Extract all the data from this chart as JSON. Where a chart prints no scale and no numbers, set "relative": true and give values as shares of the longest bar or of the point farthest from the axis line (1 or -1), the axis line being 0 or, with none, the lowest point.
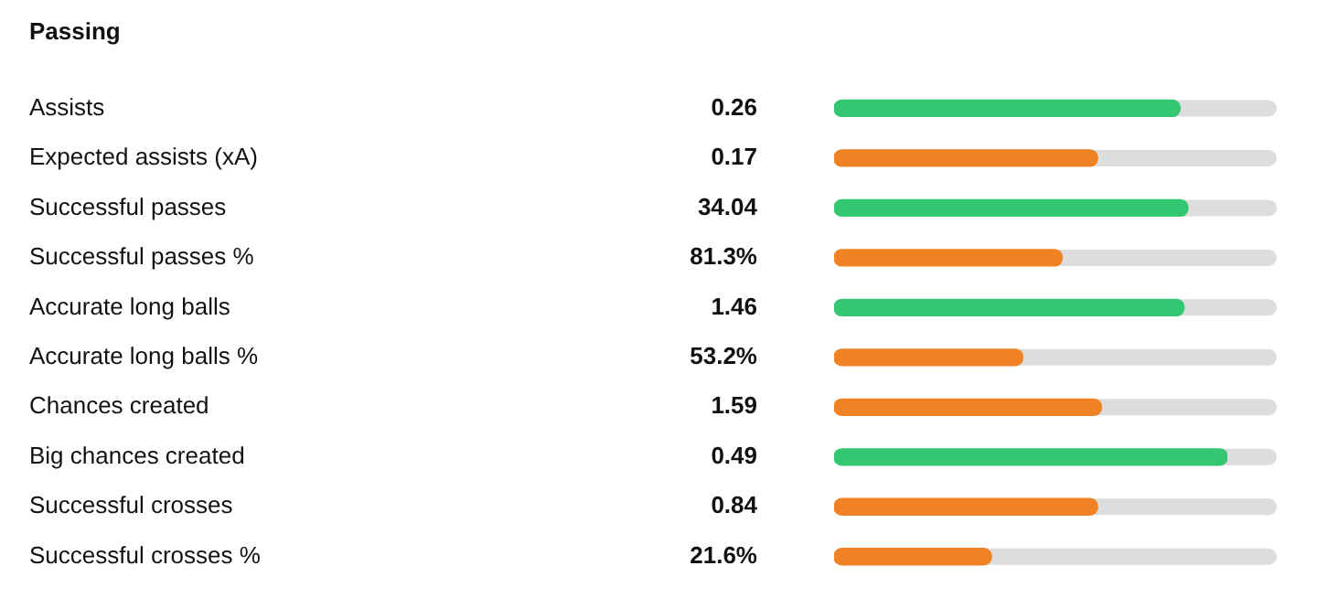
{
  "chart_data": {
    "type": "bar",
    "orientation": "horizontal",
    "relative": true,
    "title": "Passing",
    "categories": [
      "Assists",
      "Expected assists (xA)",
      "Successful passes",
      "Successful passes %",
      "Accurate long balls",
      "Accurate long balls %",
      "Chances created",
      "Big chances created",
      "Successful crosses",
      "Successful crosses %"
    ],
    "values": [
      0.88,
      0.67,
      0.9,
      0.58,
      0.89,
      0.48,
      0.68,
      1,
      0.67,
      0.4
    ],
    "colors": [
      "#34c772",
      "#f08224",
      "#34c772",
      "#f08224",
      "#34c772",
      "#f08224",
      "#f08224",
      "#34c772",
      "#f08224",
      "#f08224"
    ],
    "annotations": [
      "0.26",
      "0.17",
      "34.04",
      "81.3%",
      "1.46",
      "53.2%",
      "1.59",
      "0.49",
      "0.84",
      "21.6%"
    ]
  }
}
